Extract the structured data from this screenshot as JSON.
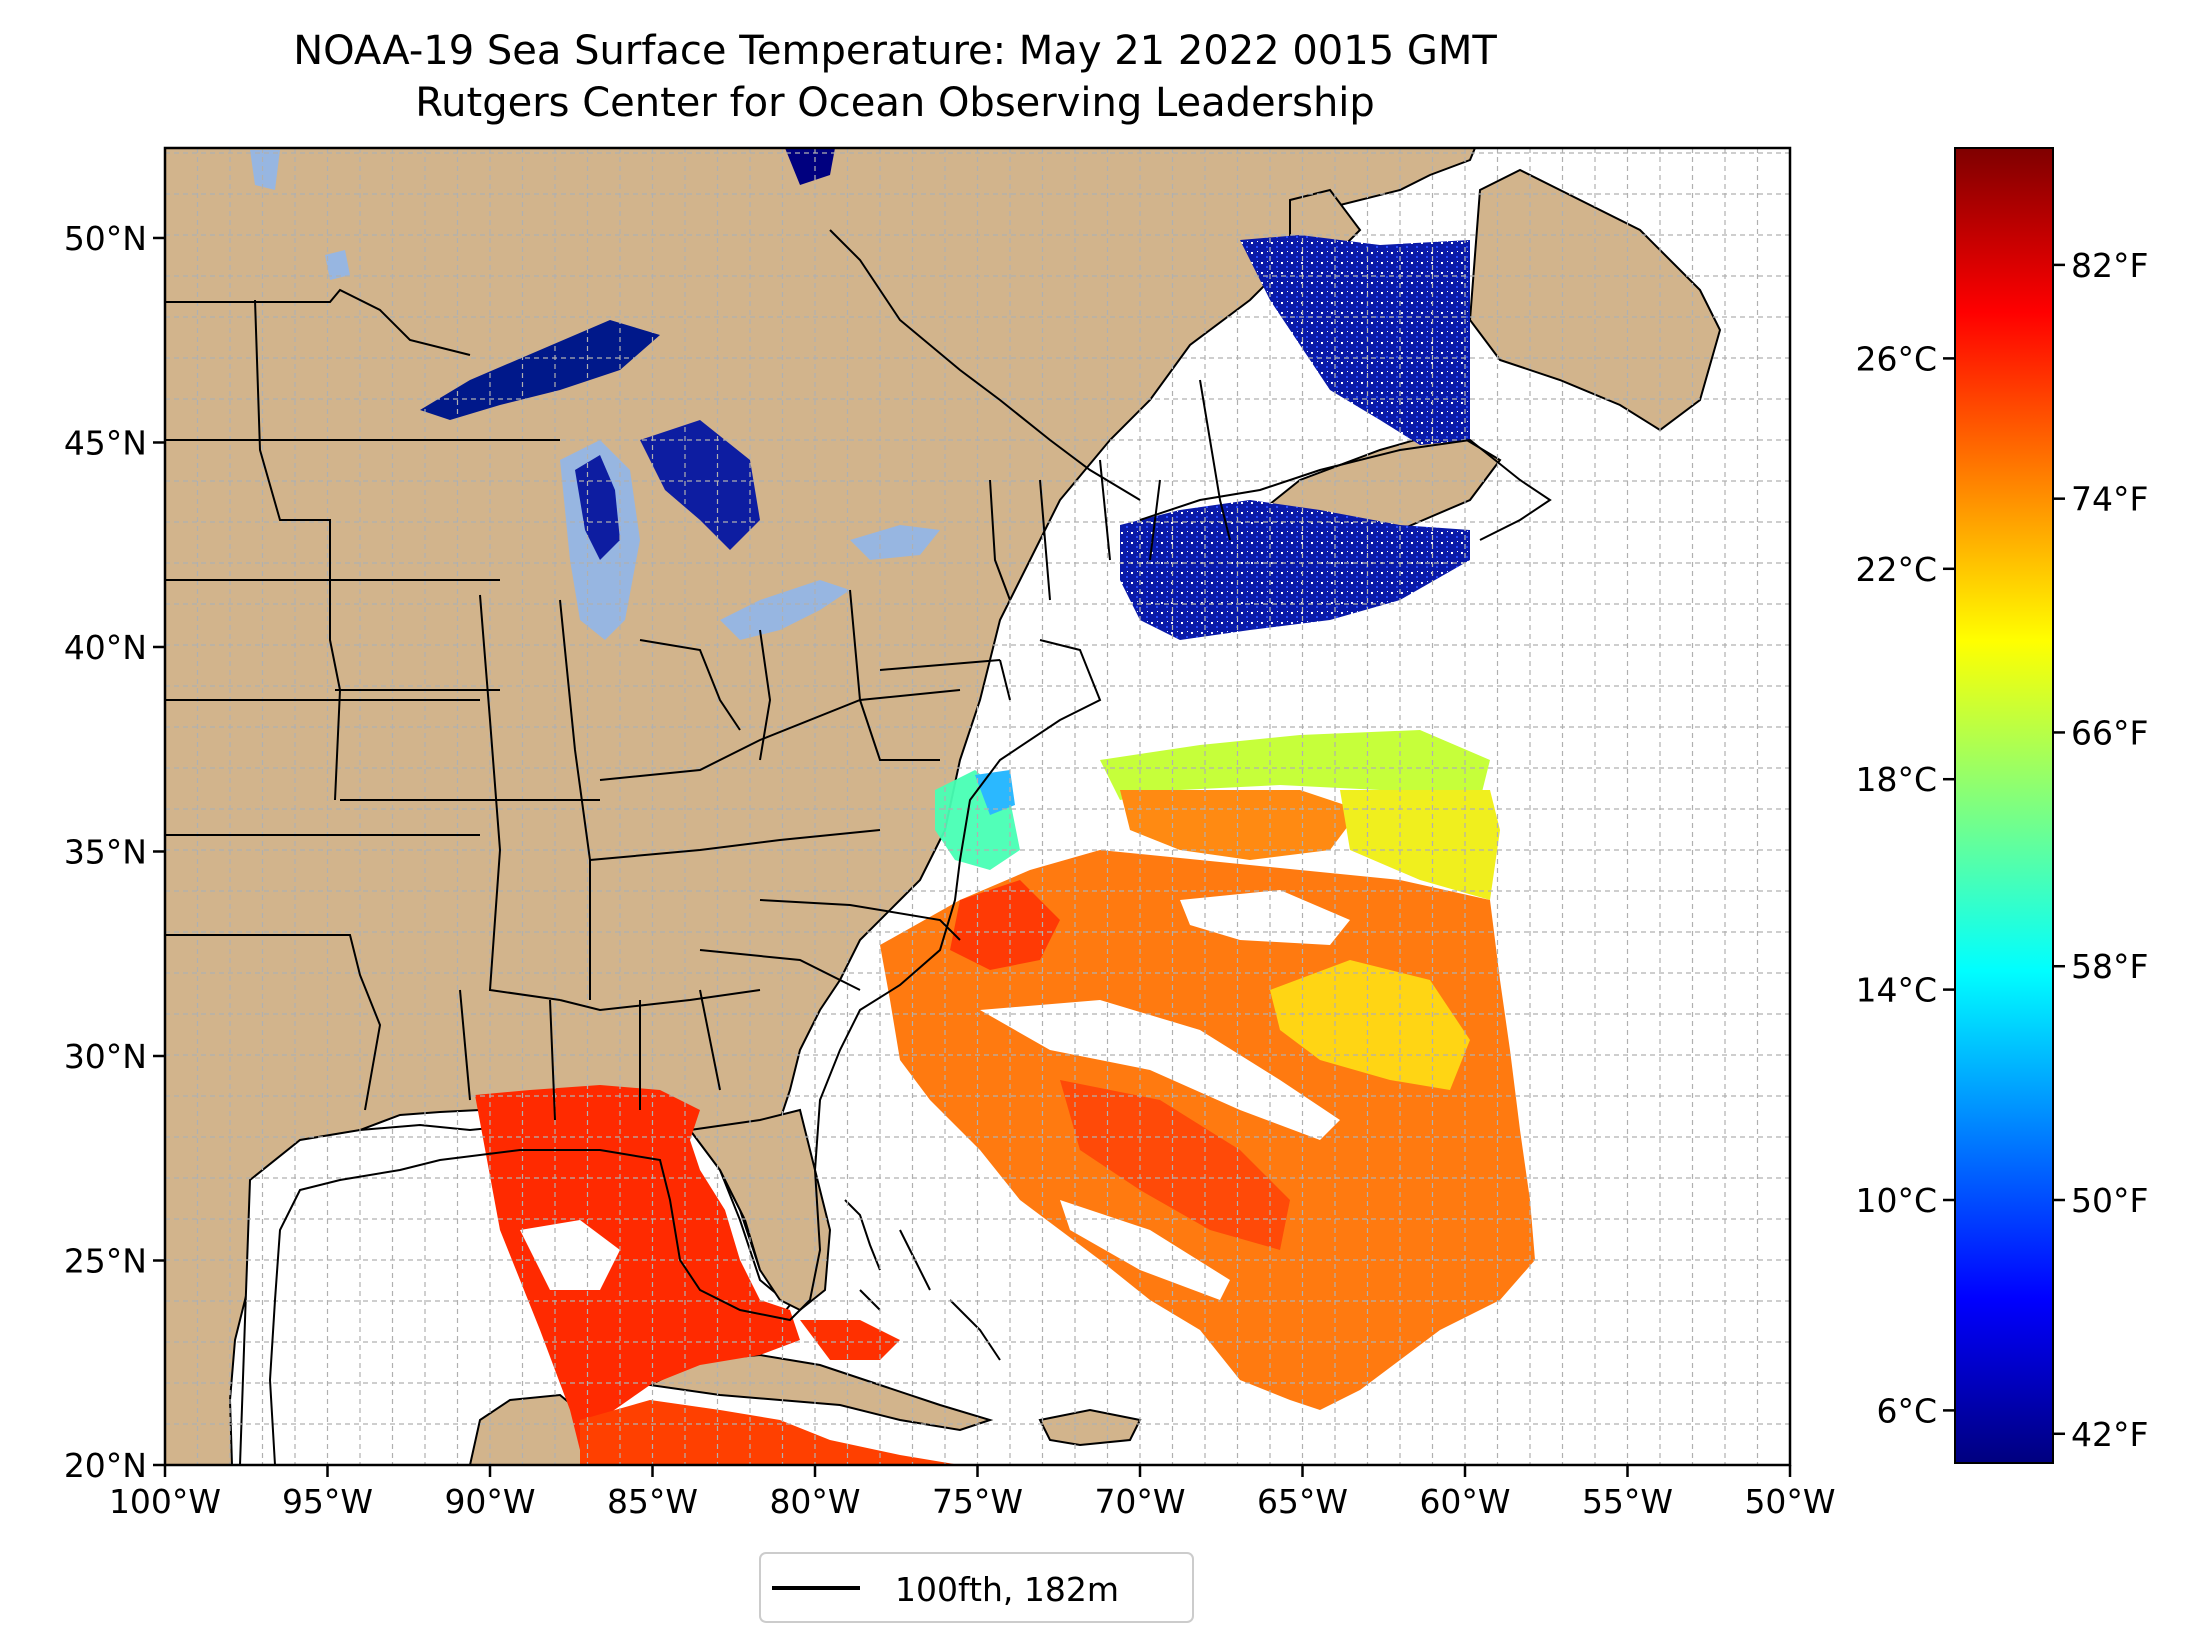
{
  "title": "NOAA-19 Sea Surface Temperature: May 21 2022 0015 GMT",
  "subtitle": "Rutgers Center for Ocean Observing Leadership",
  "map": {
    "lon_range": [
      -100,
      -50
    ],
    "lat_range": [
      20,
      52.2
    ],
    "gridlines": true,
    "land_color": "#d2b48c",
    "lake_color": "#97b6e1",
    "ocean_color": "#ffffff",
    "lat_ticks": [
      {
        "value": 20,
        "label": "20°N"
      },
      {
        "value": 25,
        "label": "25°N"
      },
      {
        "value": 30,
        "label": "30°N"
      },
      {
        "value": 35,
        "label": "35°N"
      },
      {
        "value": 40,
        "label": "40°N"
      },
      {
        "value": 45,
        "label": "45°N"
      },
      {
        "value": 50,
        "label": "50°N"
      }
    ],
    "lon_ticks": [
      {
        "value": -100,
        "label": "100°W"
      },
      {
        "value": -95,
        "label": "95°W"
      },
      {
        "value": -90,
        "label": "90°W"
      },
      {
        "value": -85,
        "label": "85°W"
      },
      {
        "value": -80,
        "label": "80°W"
      },
      {
        "value": -75,
        "label": "75°W"
      },
      {
        "value": -70,
        "label": "70°W"
      },
      {
        "value": -65,
        "label": "65°W"
      },
      {
        "value": -60,
        "label": "60°W"
      },
      {
        "value": -55,
        "label": "55°W"
      },
      {
        "value": -50,
        "label": "50°W"
      }
    ]
  },
  "legend": {
    "position": "bottom-center",
    "label": "100fth, 182m",
    "line_color": "#000000"
  },
  "colorbar": {
    "colormap": "jet",
    "colors": [
      "#00007f",
      "#0000ff",
      "#007fff",
      "#00ffff",
      "#7fff7f",
      "#ffff00",
      "#ff7f00",
      "#ff0000",
      "#7f0000"
    ],
    "celsius_range": [
      5,
      30
    ],
    "celsius_ticks": [
      {
        "value": 6,
        "label": "6°C"
      },
      {
        "value": 10,
        "label": "10°C"
      },
      {
        "value": 14,
        "label": "14°C"
      },
      {
        "value": 18,
        "label": "18°C"
      },
      {
        "value": 22,
        "label": "22°C"
      },
      {
        "value": 26,
        "label": "26°C"
      }
    ],
    "fahrenheit_ticks": [
      {
        "value": 42,
        "label": "42°F"
      },
      {
        "value": 50,
        "label": "50°F"
      },
      {
        "value": 58,
        "label": "58°F"
      },
      {
        "value": 66,
        "label": "66°F"
      },
      {
        "value": 74,
        "label": "74°F"
      },
      {
        "value": 82,
        "label": "82°F"
      }
    ]
  }
}
